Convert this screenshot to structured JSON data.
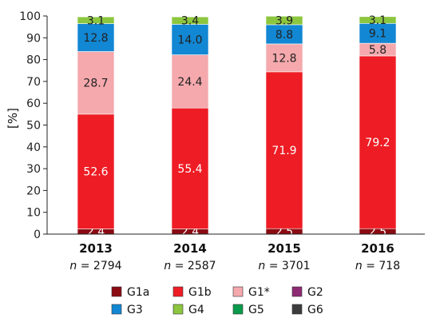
{
  "chart_data": {
    "type": "bar",
    "stacked": true,
    "ylabel": "[%]",
    "ylim": [
      0,
      100
    ],
    "yticks": [
      0,
      10,
      20,
      30,
      40,
      50,
      60,
      70,
      80,
      90,
      100
    ],
    "categories": [
      "2013",
      "2014",
      "2015",
      "2016"
    ],
    "sample_sizes": [
      "= 2794",
      "= 2587",
      "= 3701",
      "= 718"
    ],
    "sample_prefix": "n",
    "series": [
      {
        "name": "G1a",
        "color": "#8b0b12",
        "label_color": "#ffffff",
        "values": [
          2.4,
          2.4,
          2.5,
          2.5
        ]
      },
      {
        "name": "G1b",
        "color": "#ee1c24",
        "label_color": "#ffffff",
        "values": [
          52.6,
          55.4,
          71.9,
          79.2
        ]
      },
      {
        "name": "G1*",
        "color": "#f5a9ad",
        "label_color": "#222222",
        "values": [
          28.7,
          24.4,
          12.8,
          5.8
        ]
      },
      {
        "name": "G2",
        "color": "#8e2a73",
        "label_color": "#ffffff",
        "values": [
          0,
          0,
          0,
          0
        ]
      },
      {
        "name": "G3",
        "color": "#1287d3",
        "label_color": "#222222",
        "values": [
          12.8,
          14.0,
          8.8,
          9.1
        ]
      },
      {
        "name": "G4",
        "color": "#8cc63f",
        "label_color": "#222222",
        "values": [
          3.1,
          3.4,
          3.9,
          3.1
        ]
      },
      {
        "name": "G5",
        "color": "#0a9a4c",
        "label_color": "#ffffff",
        "values": [
          0,
          0,
          0,
          0
        ]
      },
      {
        "name": "G6",
        "color": "#3c3c3c",
        "label_color": "#ffffff",
        "values": [
          0,
          0,
          0,
          0
        ]
      }
    ],
    "legend_position": "bottom",
    "grid": false
  }
}
